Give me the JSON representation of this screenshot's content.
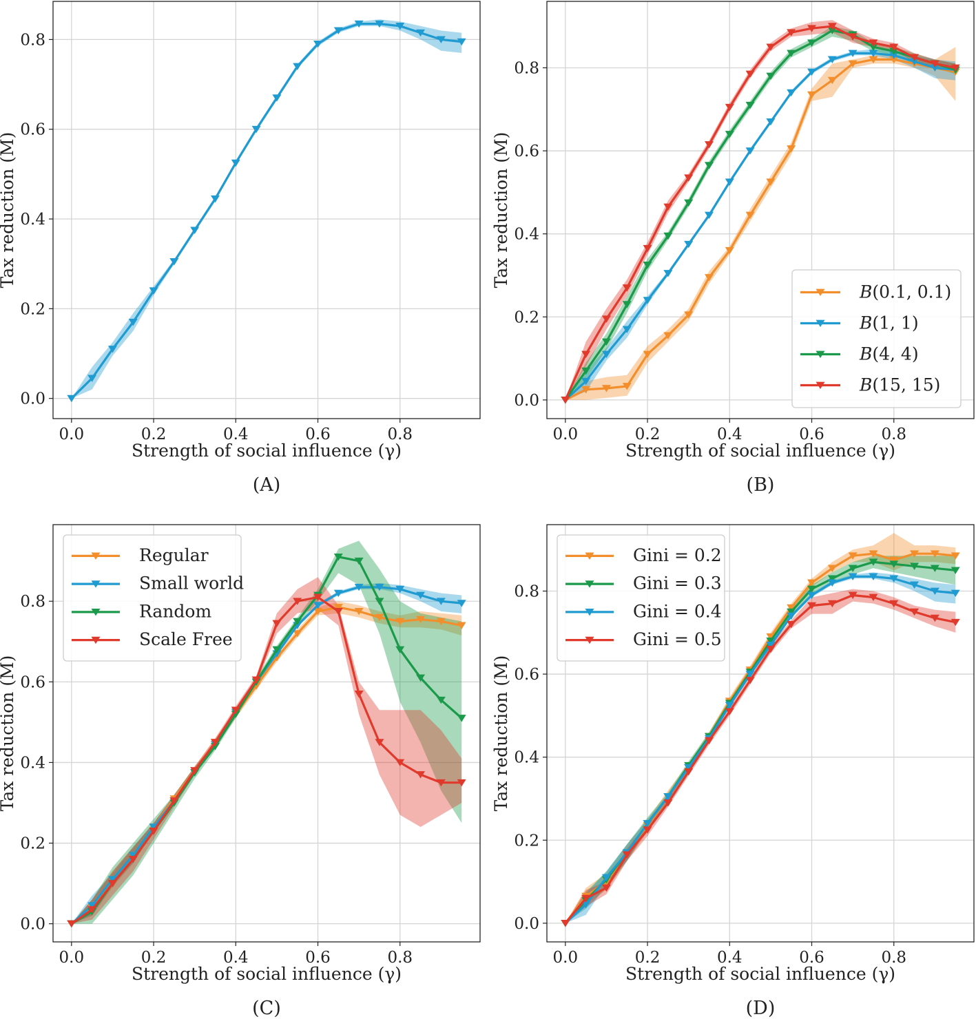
{
  "chart_data": [
    {
      "type": "line",
      "panel_label": "(A)",
      "xlabel": "Strength of social influence (γ)",
      "ylabel": "Tax reduction (M)",
      "xlim": [
        -0.045,
        0.995
      ],
      "ylim": [
        -0.045,
        0.885
      ],
      "xticks": [
        0.0,
        0.2,
        0.4,
        0.6,
        0.8
      ],
      "yticks": [
        0.0,
        0.2,
        0.4,
        0.6,
        0.8
      ],
      "grid": true,
      "x": [
        0.0,
        0.05,
        0.1,
        0.15,
        0.2,
        0.25,
        0.3,
        0.35,
        0.4,
        0.45,
        0.5,
        0.55,
        0.6,
        0.65,
        0.7,
        0.75,
        0.8,
        0.85,
        0.9,
        0.95
      ],
      "series": [
        {
          "color": "#1f9bd1",
          "values": [
            0.0,
            0.045,
            0.11,
            0.17,
            0.24,
            0.305,
            0.375,
            0.445,
            0.525,
            0.6,
            0.67,
            0.74,
            0.79,
            0.82,
            0.835,
            0.835,
            0.83,
            0.815,
            0.8,
            0.795
          ],
          "lower": [
            0.0,
            0.02,
            0.095,
            0.15,
            0.23,
            0.3,
            0.37,
            0.44,
            0.52,
            0.595,
            0.665,
            0.735,
            0.785,
            0.815,
            0.83,
            0.83,
            0.82,
            0.8,
            0.775,
            0.77
          ],
          "upper": [
            0.0,
            0.07,
            0.125,
            0.19,
            0.25,
            0.31,
            0.38,
            0.45,
            0.53,
            0.605,
            0.675,
            0.745,
            0.795,
            0.825,
            0.84,
            0.845,
            0.84,
            0.83,
            0.82,
            0.815
          ]
        }
      ]
    },
    {
      "type": "line",
      "panel_label": "(B)",
      "xlabel": "Strength of social influence (γ)",
      "ylabel": "Tax reduction (M)",
      "xlim": [
        -0.045,
        0.995
      ],
      "ylim": [
        -0.045,
        0.96
      ],
      "xticks": [
        0.0,
        0.2,
        0.4,
        0.6,
        0.8
      ],
      "yticks": [
        0.0,
        0.2,
        0.4,
        0.6,
        0.8
      ],
      "grid": true,
      "legend": "bottom-right",
      "x": [
        0.0,
        0.05,
        0.1,
        0.15,
        0.2,
        0.25,
        0.3,
        0.35,
        0.4,
        0.45,
        0.5,
        0.55,
        0.6,
        0.65,
        0.7,
        0.75,
        0.8,
        0.85,
        0.9,
        0.95
      ],
      "series": [
        {
          "name": "B(0.1, 0.1)",
          "color": "#f28e2b",
          "values": [
            0.0,
            0.025,
            0.028,
            0.033,
            0.11,
            0.155,
            0.205,
            0.295,
            0.36,
            0.445,
            0.525,
            0.605,
            0.735,
            0.77,
            0.81,
            0.82,
            0.82,
            0.81,
            0.8,
            0.79
          ],
          "lower": [
            0.0,
            0.0,
            0.005,
            0.01,
            0.09,
            0.14,
            0.19,
            0.28,
            0.35,
            0.43,
            0.51,
            0.59,
            0.72,
            0.73,
            0.8,
            0.81,
            0.81,
            0.8,
            0.78,
            0.72
          ],
          "upper": [
            0.0,
            0.045,
            0.055,
            0.06,
            0.13,
            0.17,
            0.22,
            0.31,
            0.37,
            0.46,
            0.54,
            0.62,
            0.75,
            0.81,
            0.82,
            0.83,
            0.83,
            0.82,
            0.82,
            0.85
          ]
        },
        {
          "name": "B(1, 1)",
          "color": "#1f9bd1",
          "values": [
            0.0,
            0.045,
            0.11,
            0.17,
            0.24,
            0.305,
            0.375,
            0.445,
            0.525,
            0.6,
            0.67,
            0.74,
            0.79,
            0.82,
            0.835,
            0.835,
            0.83,
            0.815,
            0.8,
            0.795
          ],
          "lower": [
            0.0,
            0.02,
            0.095,
            0.15,
            0.23,
            0.3,
            0.37,
            0.44,
            0.52,
            0.595,
            0.665,
            0.735,
            0.785,
            0.815,
            0.83,
            0.83,
            0.82,
            0.8,
            0.775,
            0.77
          ],
          "upper": [
            0.0,
            0.07,
            0.125,
            0.19,
            0.25,
            0.31,
            0.38,
            0.45,
            0.53,
            0.605,
            0.675,
            0.745,
            0.795,
            0.825,
            0.84,
            0.845,
            0.84,
            0.83,
            0.82,
            0.815
          ]
        },
        {
          "name": "B(4, 4)",
          "color": "#1a9a4a",
          "values": [
            0.0,
            0.07,
            0.14,
            0.23,
            0.325,
            0.395,
            0.475,
            0.565,
            0.64,
            0.71,
            0.78,
            0.835,
            0.86,
            0.89,
            0.88,
            0.85,
            0.84,
            0.825,
            0.81,
            0.795
          ],
          "lower": [
            0.0,
            0.05,
            0.12,
            0.21,
            0.31,
            0.385,
            0.465,
            0.555,
            0.63,
            0.7,
            0.77,
            0.825,
            0.85,
            0.875,
            0.865,
            0.84,
            0.83,
            0.81,
            0.8,
            0.785
          ],
          "upper": [
            0.0,
            0.09,
            0.16,
            0.25,
            0.34,
            0.405,
            0.485,
            0.575,
            0.65,
            0.72,
            0.79,
            0.845,
            0.87,
            0.9,
            0.89,
            0.86,
            0.85,
            0.835,
            0.82,
            0.81
          ]
        },
        {
          "name": "B(15, 15)",
          "color": "#e03a2c",
          "values": [
            0.0,
            0.11,
            0.195,
            0.27,
            0.365,
            0.465,
            0.535,
            0.615,
            0.705,
            0.785,
            0.85,
            0.885,
            0.895,
            0.9,
            0.875,
            0.86,
            0.85,
            0.825,
            0.81,
            0.8
          ],
          "lower": [
            0.0,
            0.08,
            0.17,
            0.25,
            0.35,
            0.45,
            0.525,
            0.605,
            0.695,
            0.775,
            0.84,
            0.875,
            0.88,
            0.885,
            0.86,
            0.85,
            0.84,
            0.815,
            0.8,
            0.79
          ],
          "upper": [
            0.0,
            0.14,
            0.22,
            0.29,
            0.38,
            0.48,
            0.545,
            0.625,
            0.715,
            0.795,
            0.86,
            0.895,
            0.91,
            0.915,
            0.89,
            0.87,
            0.86,
            0.835,
            0.82,
            0.81
          ]
        }
      ]
    },
    {
      "type": "line",
      "panel_label": "(C)",
      "xlabel": "Strength of social influence (γ)",
      "ylabel": "Tax reduction (M)",
      "xlim": [
        -0.045,
        0.995
      ],
      "ylim": [
        -0.045,
        0.99
      ],
      "xticks": [
        0.0,
        0.2,
        0.4,
        0.6,
        0.8
      ],
      "yticks": [
        0.0,
        0.2,
        0.4,
        0.6,
        0.8
      ],
      "grid": true,
      "legend": "top-left",
      "x": [
        0.0,
        0.05,
        0.1,
        0.15,
        0.2,
        0.25,
        0.3,
        0.35,
        0.4,
        0.45,
        0.5,
        0.55,
        0.6,
        0.65,
        0.7,
        0.75,
        0.8,
        0.85,
        0.9,
        0.95
      ],
      "series": [
        {
          "name": "Regular",
          "color": "#f28e2b",
          "values": [
            0.0,
            0.04,
            0.11,
            0.17,
            0.24,
            0.31,
            0.38,
            0.45,
            0.52,
            0.59,
            0.66,
            0.72,
            0.775,
            0.785,
            0.775,
            0.76,
            0.75,
            0.755,
            0.75,
            0.74
          ],
          "lower": [
            0.0,
            0.02,
            0.09,
            0.15,
            0.23,
            0.3,
            0.37,
            0.44,
            0.51,
            0.58,
            0.65,
            0.71,
            0.765,
            0.77,
            0.76,
            0.745,
            0.735,
            0.735,
            0.73,
            0.715
          ],
          "upper": [
            0.0,
            0.06,
            0.13,
            0.19,
            0.25,
            0.32,
            0.39,
            0.46,
            0.53,
            0.6,
            0.67,
            0.73,
            0.785,
            0.8,
            0.79,
            0.775,
            0.765,
            0.775,
            0.77,
            0.765
          ]
        },
        {
          "name": "Small world",
          "color": "#1f9bd1",
          "values": [
            0.0,
            0.045,
            0.11,
            0.17,
            0.24,
            0.305,
            0.375,
            0.445,
            0.525,
            0.6,
            0.67,
            0.74,
            0.79,
            0.82,
            0.835,
            0.835,
            0.83,
            0.815,
            0.8,
            0.795
          ],
          "lower": [
            0.0,
            0.02,
            0.095,
            0.15,
            0.23,
            0.3,
            0.37,
            0.44,
            0.52,
            0.595,
            0.665,
            0.735,
            0.785,
            0.815,
            0.83,
            0.83,
            0.82,
            0.8,
            0.775,
            0.77
          ],
          "upper": [
            0.0,
            0.07,
            0.125,
            0.19,
            0.25,
            0.31,
            0.38,
            0.45,
            0.53,
            0.605,
            0.675,
            0.745,
            0.795,
            0.825,
            0.84,
            0.845,
            0.84,
            0.83,
            0.82,
            0.815
          ]
        },
        {
          "name": "Random",
          "color": "#1a9a4a",
          "values": [
            0.0,
            0.03,
            0.1,
            0.16,
            0.23,
            0.3,
            0.375,
            0.44,
            0.52,
            0.6,
            0.68,
            0.75,
            0.815,
            0.91,
            0.9,
            0.8,
            0.68,
            0.61,
            0.555,
            0.51
          ],
          "lower": [
            0.0,
            0.0,
            0.06,
            0.12,
            0.2,
            0.28,
            0.36,
            0.43,
            0.51,
            0.59,
            0.67,
            0.74,
            0.8,
            0.87,
            0.84,
            0.72,
            0.55,
            0.45,
            0.33,
            0.25
          ],
          "upper": [
            0.0,
            0.06,
            0.14,
            0.2,
            0.26,
            0.32,
            0.39,
            0.45,
            0.53,
            0.61,
            0.69,
            0.76,
            0.83,
            0.93,
            0.95,
            0.88,
            0.8,
            0.77,
            0.76,
            0.75
          ]
        },
        {
          "name": "Scale Free",
          "color": "#e03a2c",
          "values": [
            0.0,
            0.035,
            0.1,
            0.16,
            0.23,
            0.305,
            0.38,
            0.45,
            0.53,
            0.605,
            0.745,
            0.8,
            0.81,
            0.775,
            0.57,
            0.45,
            0.4,
            0.37,
            0.35,
            0.35
          ],
          "lower": [
            0.0,
            0.01,
            0.07,
            0.13,
            0.21,
            0.29,
            0.37,
            0.44,
            0.52,
            0.595,
            0.72,
            0.77,
            0.78,
            0.74,
            0.52,
            0.37,
            0.27,
            0.24,
            0.27,
            0.3
          ],
          "upper": [
            0.0,
            0.06,
            0.13,
            0.19,
            0.25,
            0.32,
            0.39,
            0.46,
            0.54,
            0.615,
            0.77,
            0.83,
            0.86,
            0.79,
            0.6,
            0.53,
            0.53,
            0.53,
            0.48,
            0.41
          ]
        }
      ]
    },
    {
      "type": "line",
      "panel_label": "(D)",
      "xlabel": "Strength of social influence (γ)",
      "ylabel": "Tax reduction (M)",
      "xlim": [
        -0.045,
        0.995
      ],
      "ylim": [
        -0.045,
        0.96
      ],
      "xticks": [
        0.0,
        0.2,
        0.4,
        0.6,
        0.8
      ],
      "yticks": [
        0.0,
        0.2,
        0.4,
        0.6,
        0.8
      ],
      "grid": true,
      "legend": "top-left",
      "x": [
        0.0,
        0.05,
        0.1,
        0.15,
        0.2,
        0.25,
        0.3,
        0.35,
        0.4,
        0.45,
        0.5,
        0.55,
        0.6,
        0.65,
        0.7,
        0.75,
        0.8,
        0.85,
        0.9,
        0.95
      ],
      "series": [
        {
          "name": "Gini = 0.2",
          "color": "#f28e2b",
          "values": [
            0.0,
            0.065,
            0.1,
            0.17,
            0.235,
            0.305,
            0.375,
            0.45,
            0.535,
            0.61,
            0.69,
            0.76,
            0.82,
            0.855,
            0.885,
            0.89,
            0.875,
            0.89,
            0.89,
            0.885
          ],
          "lower": [
            0.0,
            0.045,
            0.08,
            0.15,
            0.22,
            0.29,
            0.365,
            0.44,
            0.525,
            0.6,
            0.68,
            0.75,
            0.81,
            0.845,
            0.87,
            0.87,
            0.85,
            0.87,
            0.87,
            0.865
          ],
          "upper": [
            0.0,
            0.085,
            0.12,
            0.19,
            0.25,
            0.32,
            0.385,
            0.46,
            0.545,
            0.62,
            0.7,
            0.77,
            0.83,
            0.87,
            0.9,
            0.91,
            0.94,
            0.91,
            0.91,
            0.905
          ]
        },
        {
          "name": "Gini = 0.3",
          "color": "#1a9a4a",
          "values": [
            0.0,
            0.055,
            0.105,
            0.17,
            0.24,
            0.305,
            0.38,
            0.45,
            0.53,
            0.605,
            0.68,
            0.75,
            0.805,
            0.83,
            0.855,
            0.87,
            0.865,
            0.86,
            0.855,
            0.85
          ],
          "lower": [
            0.0,
            0.035,
            0.085,
            0.15,
            0.225,
            0.295,
            0.37,
            0.44,
            0.52,
            0.595,
            0.67,
            0.74,
            0.795,
            0.815,
            0.84,
            0.855,
            0.845,
            0.835,
            0.825,
            0.815
          ],
          "upper": [
            0.0,
            0.075,
            0.125,
            0.19,
            0.255,
            0.315,
            0.39,
            0.46,
            0.54,
            0.615,
            0.69,
            0.76,
            0.815,
            0.845,
            0.87,
            0.885,
            0.885,
            0.885,
            0.885,
            0.885
          ]
        },
        {
          "name": "Gini = 0.4",
          "color": "#1f9bd1",
          "values": [
            0.0,
            0.045,
            0.11,
            0.17,
            0.24,
            0.305,
            0.375,
            0.445,
            0.525,
            0.6,
            0.67,
            0.74,
            0.79,
            0.82,
            0.835,
            0.835,
            0.83,
            0.815,
            0.8,
            0.795
          ],
          "lower": [
            0.0,
            0.02,
            0.095,
            0.15,
            0.23,
            0.3,
            0.37,
            0.44,
            0.52,
            0.595,
            0.665,
            0.735,
            0.785,
            0.815,
            0.83,
            0.83,
            0.82,
            0.8,
            0.775,
            0.77
          ],
          "upper": [
            0.0,
            0.07,
            0.125,
            0.19,
            0.25,
            0.31,
            0.38,
            0.45,
            0.53,
            0.605,
            0.675,
            0.745,
            0.795,
            0.825,
            0.84,
            0.845,
            0.84,
            0.83,
            0.82,
            0.815
          ]
        },
        {
          "name": "Gini = 0.5",
          "color": "#e03a2c",
          "values": [
            0.0,
            0.06,
            0.085,
            0.165,
            0.225,
            0.29,
            0.365,
            0.44,
            0.51,
            0.585,
            0.66,
            0.72,
            0.765,
            0.77,
            0.79,
            0.785,
            0.77,
            0.75,
            0.735,
            0.725
          ],
          "lower": [
            0.0,
            0.04,
            0.07,
            0.15,
            0.21,
            0.28,
            0.355,
            0.43,
            0.5,
            0.575,
            0.65,
            0.71,
            0.745,
            0.745,
            0.775,
            0.77,
            0.755,
            0.735,
            0.715,
            0.7
          ],
          "upper": [
            0.0,
            0.08,
            0.1,
            0.18,
            0.24,
            0.3,
            0.375,
            0.45,
            0.52,
            0.595,
            0.67,
            0.73,
            0.785,
            0.795,
            0.805,
            0.8,
            0.785,
            0.765,
            0.755,
            0.75
          ]
        }
      ]
    }
  ]
}
